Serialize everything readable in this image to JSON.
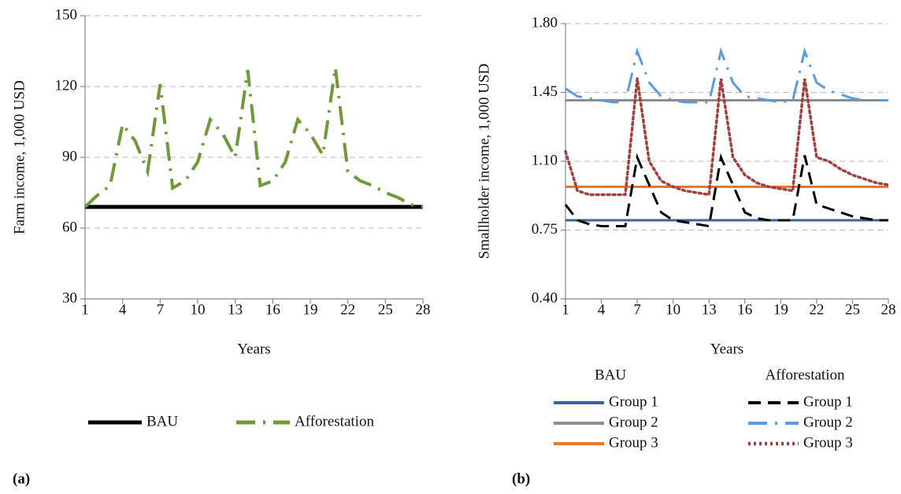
{
  "chart_data": [
    {
      "type": "line",
      "panel_label": "(a)",
      "x_label": "Years",
      "y_label": "Farm income, 1,000 USD",
      "x": [
        1,
        2,
        3,
        4,
        5,
        6,
        7,
        8,
        9,
        10,
        11,
        12,
        13,
        14,
        15,
        16,
        17,
        18,
        19,
        20,
        21,
        22,
        23,
        24,
        25,
        26,
        27,
        28
      ],
      "xlim": [
        1,
        28
      ],
      "xticks": [
        1,
        4,
        7,
        10,
        13,
        16,
        19,
        22,
        25,
        28
      ],
      "ylim": [
        30,
        150
      ],
      "yticks": [
        30,
        60,
        90,
        120,
        150
      ],
      "grid": true,
      "series": [
        {
          "name": "BAU",
          "color": "#000000",
          "style": "solid",
          "width": 5,
          "values": [
            69,
            69,
            69,
            69,
            69,
            69,
            69,
            69,
            69,
            69,
            69,
            69,
            69,
            69,
            69,
            69,
            69,
            69,
            69,
            69,
            69,
            69,
            69,
            69,
            69,
            69,
            69,
            69
          ]
        },
        {
          "name": "Afforestation",
          "color": "#6e9a3a",
          "style": "dashdot",
          "width": 4,
          "values": [
            69,
            74,
            78,
            104,
            97,
            84,
            121,
            77,
            80,
            88,
            106,
            100,
            90,
            127,
            78,
            80,
            88,
            106,
            100,
            91,
            128,
            84,
            80,
            78,
            75,
            73,
            70,
            69
          ]
        }
      ]
    },
    {
      "type": "line",
      "panel_label": "(b)",
      "x_label": "Years",
      "y_label": "Smallholder income, 1,000 USD",
      "x": [
        1,
        2,
        3,
        4,
        5,
        6,
        7,
        8,
        9,
        10,
        11,
        12,
        13,
        14,
        15,
        16,
        17,
        18,
        19,
        20,
        21,
        22,
        23,
        24,
        25,
        26,
        27,
        28
      ],
      "xlim": [
        1,
        28
      ],
      "xticks": [
        1,
        4,
        7,
        10,
        13,
        16,
        19,
        22,
        25,
        28
      ],
      "ylim": [
        0.4,
        1.8
      ],
      "yticks": [
        {
          "value": 0.4,
          "label": "0.40"
        },
        0.75,
        {
          "value": 1.1,
          "label": "1.10"
        },
        1.45,
        {
          "value": 1.8,
          "label": "1.80"
        }
      ],
      "grid": true,
      "series": [
        {
          "group": "BAU",
          "name": "Group 1",
          "color": "#3d62a0",
          "style": "solid",
          "width": 3,
          "values": [
            0.8,
            0.8,
            0.8,
            0.8,
            0.8,
            0.8,
            0.8,
            0.8,
            0.8,
            0.8,
            0.8,
            0.8,
            0.8,
            0.8,
            0.8,
            0.8,
            0.8,
            0.8,
            0.8,
            0.8,
            0.8,
            0.8,
            0.8,
            0.8,
            0.8,
            0.8,
            0.8,
            0.8
          ]
        },
        {
          "group": "BAU",
          "name": "Group 2",
          "color": "#8c8c8c",
          "style": "solid",
          "width": 3,
          "values": [
            1.41,
            1.41,
            1.41,
            1.41,
            1.41,
            1.41,
            1.41,
            1.41,
            1.41,
            1.41,
            1.41,
            1.41,
            1.41,
            1.41,
            1.41,
            1.41,
            1.41,
            1.41,
            1.41,
            1.41,
            1.41,
            1.41,
            1.41,
            1.41,
            1.41,
            1.41,
            1.41,
            1.41
          ]
        },
        {
          "group": "BAU",
          "name": "Group 3",
          "color": "#e8772e",
          "style": "solid",
          "width": 3,
          "values": [
            0.97,
            0.97,
            0.97,
            0.97,
            0.97,
            0.97,
            0.97,
            0.97,
            0.97,
            0.97,
            0.97,
            0.97,
            0.97,
            0.97,
            0.97,
            0.97,
            0.97,
            0.97,
            0.97,
            0.97,
            0.97,
            0.97,
            0.97,
            0.97,
            0.97,
            0.97,
            0.97,
            0.97
          ]
        },
        {
          "group": "Afforestation",
          "name": "Group 1",
          "color": "#000000",
          "style": "dashed",
          "width": 3,
          "values": [
            0.88,
            0.8,
            0.78,
            0.77,
            0.77,
            0.77,
            1.12,
            0.98,
            0.84,
            0.8,
            0.79,
            0.78,
            0.77,
            1.12,
            0.98,
            0.84,
            0.81,
            0.8,
            0.8,
            0.8,
            1.13,
            0.88,
            0.86,
            0.84,
            0.82,
            0.81,
            0.8,
            0.8
          ]
        },
        {
          "group": "Afforestation",
          "name": "Group 2",
          "color": "#5b9bdc",
          "style": "dashdot",
          "width": 3,
          "values": [
            1.47,
            1.43,
            1.42,
            1.41,
            1.4,
            1.4,
            1.66,
            1.5,
            1.43,
            1.41,
            1.4,
            1.4,
            1.4,
            1.66,
            1.5,
            1.43,
            1.42,
            1.41,
            1.4,
            1.41,
            1.66,
            1.5,
            1.46,
            1.44,
            1.42,
            1.41,
            1.41,
            1.41
          ]
        },
        {
          "group": "Afforestation",
          "name": "Group 3",
          "color": "#a04040",
          "style": "dotted",
          "width": 3.5,
          "values": [
            1.15,
            0.95,
            0.93,
            0.93,
            0.93,
            0.93,
            1.52,
            1.1,
            1.0,
            0.97,
            0.95,
            0.94,
            0.93,
            1.52,
            1.12,
            1.03,
            0.99,
            0.97,
            0.96,
            0.95,
            1.52,
            1.12,
            1.1,
            1.06,
            1.03,
            1.01,
            0.99,
            0.98
          ]
        }
      ]
    }
  ]
}
